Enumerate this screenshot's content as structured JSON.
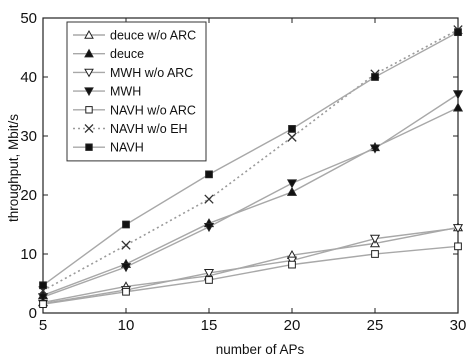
{
  "chart_data": {
    "type": "line",
    "title": "",
    "xlabel": "number of APs",
    "ylabel": "throughput, Mbit/s",
    "xlim": [
      5,
      30
    ],
    "ylim": [
      0,
      50
    ],
    "xticks": [
      "5",
      "10",
      "15",
      "20",
      "25",
      "30"
    ],
    "yticks": [
      "0",
      "10",
      "20",
      "30",
      "40",
      "50"
    ],
    "grid": false,
    "legend_position": "top-left",
    "x": [
      5,
      10,
      15,
      20,
      25,
      30
    ],
    "series": [
      {
        "name": "deuce w/o ARC",
        "marker": "triangle-up-open",
        "dash": "solid",
        "color": "#a8a8a8",
        "values": [
          1.8,
          4.5,
          6.3,
          9.8,
          11.8,
          14.5
        ]
      },
      {
        "name": "deuce",
        "marker": "triangle-up-filled",
        "dash": "solid",
        "color": "#a8a8a8",
        "values": [
          3.0,
          8.3,
          15.2,
          20.5,
          28.1,
          34.8
        ]
      },
      {
        "name": "MWH w/o ARC",
        "marker": "triangle-down-open",
        "dash": "solid",
        "color": "#a8a8a8",
        "values": [
          1.6,
          3.9,
          6.8,
          8.9,
          12.6,
          14.4
        ]
      },
      {
        "name": "MWH",
        "marker": "triangle-down-filled",
        "dash": "solid",
        "color": "#a8a8a8",
        "values": [
          2.7,
          7.8,
          14.6,
          22.0,
          27.9,
          37.1
        ]
      },
      {
        "name": "NAVH w/o ARC",
        "marker": "square-open",
        "dash": "solid",
        "color": "#a8a8a8",
        "values": [
          1.5,
          3.6,
          5.6,
          8.2,
          10.0,
          11.3
        ]
      },
      {
        "name": "NAVH w/o EH",
        "marker": "x",
        "dash": "dotted",
        "color": "#9a9a9a",
        "values": [
          3.8,
          11.5,
          19.3,
          29.8,
          40.5,
          48.0
        ]
      },
      {
        "name": "NAVH",
        "marker": "square-filled",
        "dash": "solid",
        "color": "#a8a8a8",
        "values": [
          4.7,
          15.0,
          23.5,
          31.2,
          40.0,
          47.6
        ]
      }
    ]
  }
}
